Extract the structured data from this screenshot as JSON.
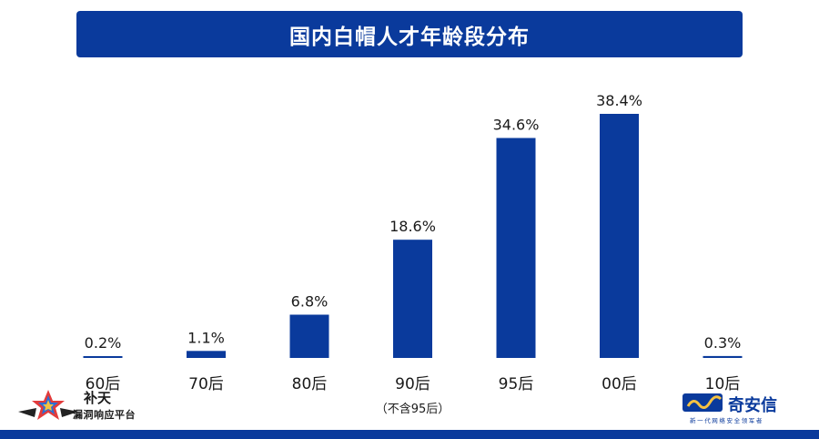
{
  "header": {
    "title": "国内白帽人才年龄段分布"
  },
  "chart_data": {
    "type": "bar",
    "title": "国内白帽人才年龄段分布",
    "categories": [
      "60后",
      "70后",
      "80后",
      "90后",
      "95后",
      "00后",
      "10后"
    ],
    "values": [
      0.2,
      1.1,
      6.8,
      18.6,
      34.6,
      38.4,
      0.3
    ],
    "data_labels": [
      "0.2%",
      "1.1%",
      "6.8%",
      "18.6%",
      "34.6%",
      "38.4%",
      "0.3%"
    ],
    "category_notes": {
      "3": "（不含95后）"
    },
    "ylim": [
      0,
      38.4
    ],
    "xlabel": "",
    "ylabel": "",
    "grid": false,
    "bar_color": "#0a3a9c"
  },
  "footer": {
    "left_logo": {
      "brand": "补天",
      "sub": "漏洞响应平台"
    },
    "right_logo": {
      "brand": "奇安信",
      "sub": "新一代网络安全领军者"
    }
  },
  "colors": {
    "accent": "#0a3a9c",
    "text": "#1a1a1a",
    "bar": "#0a3a9c"
  }
}
